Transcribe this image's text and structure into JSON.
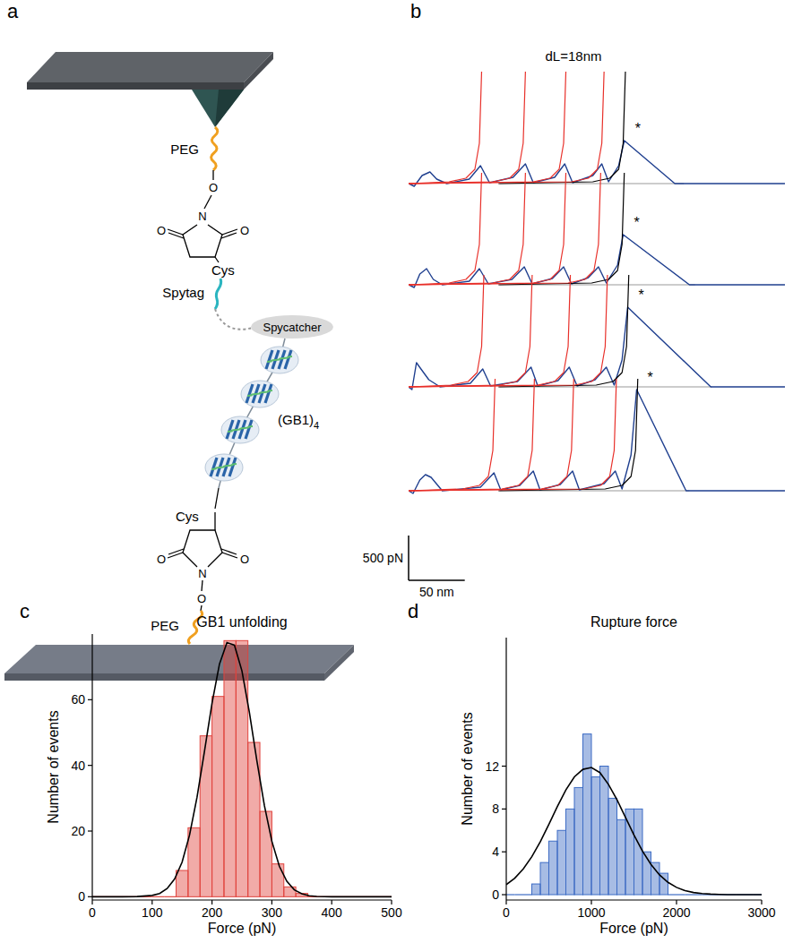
{
  "diagram": {
    "panel": "a",
    "top_peg": "PEG",
    "top_atoms": [
      "O",
      "N",
      "O",
      "O"
    ],
    "top_cys": "Cys",
    "spytag": "Spytag",
    "spycatcher": "Spycatcher",
    "gb1": {
      "text": "(GB1)",
      "subscript": "4"
    },
    "bottom_cys": "Cys",
    "bottom_atoms": [
      "O",
      "N",
      "O",
      "O"
    ],
    "bottom_peg": "PEG"
  },
  "chart_data": [
    {
      "panel": "b",
      "type": "line",
      "title": "dL=18nm",
      "xlim": [
        0,
        335
      ],
      "ylim": [
        -100,
        1300
      ],
      "tick_labels": false,
      "scale_bars": [
        {
          "value": 500,
          "label": "500 pN"
        },
        {
          "value": 50,
          "label": "50 nm"
        }
      ],
      "traces": [
        {
          "annotation": "*",
          "series": [
            {
              "color": "#1f3f8f",
              "x": [
                0,
                5,
                12,
                19,
                25,
                34,
                54,
                64,
                72,
                93,
                104,
                111,
                130,
                139,
                146,
                164,
                172,
                178,
                187,
                192,
                237,
                335
              ],
              "values": [
                0,
                -30,
                90,
                130,
                50,
                0,
                50,
                200,
                10,
                70,
                220,
                10,
                70,
                220,
                10,
                90,
                220,
                20,
                200,
                480,
                0,
                0
              ]
            },
            {
              "color": "#e8302a",
              "x": [
                0,
                36,
                51,
                59,
                63,
                65
              ],
              "values": [
                0,
                20,
                60,
                160,
                450,
                1250
              ]
            },
            {
              "color": "#e8302a",
              "x": [
                0,
                75,
                90,
                98,
                102,
                104
              ],
              "values": [
                0,
                20,
                60,
                160,
                450,
                1250
              ]
            },
            {
              "color": "#e8302a",
              "x": [
                0,
                111,
                126,
                134,
                138,
                140
              ],
              "values": [
                0,
                20,
                60,
                160,
                450,
                1250
              ]
            },
            {
              "color": "#e8302a",
              "x": [
                0,
                145,
                160,
                168,
                172,
                174
              ],
              "values": [
                0,
                20,
                60,
                160,
                450,
                1250
              ]
            },
            {
              "color": "#000000",
              "x": [
                80,
                164,
                179,
                187,
                191,
                193
              ],
              "values": [
                0,
                20,
                60,
                160,
                450,
                1250
              ]
            },
            {
              "color": "#9a9a9a",
              "x": [
                81,
                245
              ],
              "values": [
                0,
                0
              ]
            }
          ]
        },
        {
          "annotation": "*",
          "series": [
            {
              "color": "#1f3f8f",
              "x": [
                0,
                5,
                10,
                16,
                22,
                30,
                54,
                63,
                71,
                92,
                103,
                110,
                128,
                138,
                145,
                160,
                169,
                176,
                186,
                191,
                250,
                335
              ],
              "values": [
                0,
                -30,
                120,
                180,
                60,
                0,
                40,
                180,
                10,
                60,
                200,
                10,
                70,
                200,
                10,
                80,
                200,
                20,
                220,
                560,
                0,
                0
              ]
            },
            {
              "color": "#e8302a",
              "x": [
                0,
                36,
                51,
                59,
                63,
                65
              ],
              "values": [
                0,
                20,
                60,
                160,
                450,
                1250
              ]
            },
            {
              "color": "#e8302a",
              "x": [
                0,
                75,
                90,
                98,
                102,
                104
              ],
              "values": [
                0,
                20,
                60,
                160,
                450,
                1250
              ]
            },
            {
              "color": "#e8302a",
              "x": [
                0,
                111,
                126,
                134,
                138,
                140
              ],
              "values": [
                0,
                20,
                60,
                160,
                450,
                1250
              ]
            },
            {
              "color": "#e8302a",
              "x": [
                0,
                142,
                157,
                165,
                169,
                171
              ],
              "values": [
                0,
                20,
                60,
                160,
                450,
                1250
              ]
            },
            {
              "color": "#000000",
              "x": [
                80,
                163,
                178,
                186,
                190,
                192
              ],
              "values": [
                0,
                20,
                60,
                160,
                450,
                1250
              ]
            },
            {
              "color": "#9a9a9a",
              "x": [
                81,
                255
              ],
              "values": [
                0,
                0
              ]
            }
          ]
        },
        {
          "annotation": "*",
          "series": [
            {
              "color": "#1f3f8f",
              "x": [
                0,
                3,
                7,
                11,
                18,
                28,
                55,
                66,
                73,
                97,
                109,
                115,
                133,
                143,
                150,
                166,
                176,
                183,
                190,
                195,
                269,
                335
              ],
              "values": [
                0,
                -30,
                270,
                200,
                80,
                0,
                40,
                200,
                10,
                60,
                220,
                10,
                70,
                220,
                10,
                80,
                220,
                20,
                300,
                890,
                0,
                0
              ]
            },
            {
              "color": "#e8302a",
              "x": [
                0,
                38,
                53,
                61,
                65,
                67
              ],
              "values": [
                0,
                20,
                60,
                160,
                450,
                1250
              ]
            },
            {
              "color": "#e8302a",
              "x": [
                0,
                81,
                96,
                104,
                108,
                110
              ],
              "values": [
                0,
                20,
                60,
                160,
                450,
                1250
              ]
            },
            {
              "color": "#e8302a",
              "x": [
                0,
                115,
                130,
                138,
                142,
                144
              ],
              "values": [
                0,
                20,
                60,
                160,
                450,
                1250
              ]
            },
            {
              "color": "#e8302a",
              "x": [
                0,
                148,
                163,
                171,
                175,
                177
              ],
              "values": [
                0,
                20,
                60,
                160,
                450,
                1250
              ]
            },
            {
              "color": "#000000",
              "x": [
                80,
                167,
                182,
                190,
                194,
                196
              ],
              "values": [
                0,
                20,
                60,
                160,
                450,
                1250
              ]
            },
            {
              "color": "#9a9a9a",
              "x": [
                81,
                270
              ],
              "values": [
                0,
                0
              ]
            }
          ]
        },
        {
          "annotation": "*",
          "series": [
            {
              "color": "#1f3f8f",
              "x": [
                0,
                4,
                10,
                15,
                20,
                30,
                64,
                76,
                82,
                99,
                111,
                117,
                135,
                146,
                152,
                174,
                184,
                190,
                198,
                203,
                247,
                335
              ],
              "values": [
                0,
                -30,
                120,
                180,
                150,
                0,
                40,
                200,
                10,
                60,
                220,
                10,
                70,
                220,
                10,
                80,
                220,
                20,
                400,
                1130,
                0,
                0
              ]
            },
            {
              "color": "#e8302a",
              "x": [
                0,
                48,
                63,
                71,
                75,
                77
              ],
              "values": [
                0,
                20,
                60,
                160,
                450,
                1250
              ]
            },
            {
              "color": "#e8302a",
              "x": [
                0,
                83,
                98,
                106,
                110,
                112
              ],
              "values": [
                0,
                20,
                60,
                160,
                450,
                1250
              ]
            },
            {
              "color": "#e8302a",
              "x": [
                0,
                118,
                133,
                141,
                145,
                147
              ],
              "values": [
                0,
                20,
                60,
                160,
                450,
                1250
              ]
            },
            {
              "color": "#e8302a",
              "x": [
                0,
                156,
                171,
                179,
                183,
                185
              ],
              "values": [
                0,
                20,
                60,
                160,
                450,
                1250
              ]
            },
            {
              "color": "#000000",
              "x": [
                80,
                175,
                190,
                198,
                202,
                204
              ],
              "values": [
                0,
                20,
                60,
                160,
                450,
                1250
              ]
            },
            {
              "color": "#9a9a9a",
              "x": [
                81,
                250
              ],
              "values": [
                0,
                0
              ]
            }
          ]
        }
      ]
    },
    {
      "panel": "c",
      "type": "histogram",
      "title": "GB1 unfolding",
      "x_label": "Force (pN)",
      "y_label": "Number of events",
      "color": "#e0443e",
      "bins": [
        0,
        20,
        40,
        60,
        80,
        100,
        120,
        140,
        160,
        180,
        200,
        220,
        240,
        260,
        280,
        300,
        320,
        340,
        360,
        380,
        400,
        420,
        440,
        460,
        480,
        500
      ],
      "counts": [
        0,
        0,
        0,
        0,
        0,
        0,
        0,
        8,
        21,
        49,
        61,
        78,
        78,
        47,
        26,
        10,
        3,
        1,
        0,
        0,
        0,
        0,
        0,
        0,
        0
      ],
      "xlim": [
        0,
        500
      ],
      "ylim": [
        -1,
        80
      ],
      "xticks": [
        0,
        100,
        200,
        300,
        400,
        500
      ],
      "yticks": [
        0,
        20,
        40,
        60
      ],
      "fit": {
        "color": "#000000",
        "x": [
          0,
          25,
          50,
          75,
          100,
          112.5,
          125,
          137.5,
          150,
          162.5,
          175,
          187.5,
          200,
          212.5,
          225,
          237.5,
          250,
          262.5,
          275,
          287.5,
          300,
          312.5,
          325,
          337.5,
          350,
          362.5,
          375,
          400,
          450,
          500
        ],
        "values": [
          0,
          0,
          0,
          0.05,
          0.4,
          1.0,
          2.5,
          5.4,
          10.5,
          18.8,
          30.3,
          44.4,
          58.9,
          70.9,
          77.4,
          76.6,
          68.8,
          56.1,
          41.4,
          27.8,
          16.9,
          9.3,
          4.7,
          2.1,
          0.9,
          0.3,
          0.1,
          0,
          0,
          0
        ]
      }
    },
    {
      "panel": "d",
      "type": "histogram",
      "title": "Rupture force",
      "x_label": "Force (pN)",
      "y_label": "Number of events",
      "color": "#3c6bc4",
      "bins": [
        0,
        100,
        200,
        300,
        400,
        500,
        600,
        700,
        800,
        900,
        1000,
        1100,
        1200,
        1300,
        1400,
        1500,
        1600,
        1700,
        1800,
        1900,
        2000,
        2100,
        2200,
        2300,
        2400,
        2500,
        2600,
        2700,
        2800,
        2900,
        3000
      ],
      "counts": [
        0,
        0,
        0,
        1,
        3,
        5,
        6,
        8,
        10,
        15,
        11,
        12,
        9,
        7,
        8,
        8,
        4,
        3,
        2,
        0,
        0,
        0,
        0,
        0,
        0,
        0,
        0,
        0,
        0,
        0
      ],
      "xlim": [
        0,
        3000
      ],
      "ylim": [
        -0.5,
        24
      ],
      "xticks": [
        0,
        1000,
        2000,
        3000
      ],
      "yticks": [
        0,
        4,
        8,
        12
      ],
      "fit": {
        "color": "#000000",
        "x": [
          0,
          100,
          200,
          300,
          400,
          500,
          600,
          700,
          800,
          900,
          1000,
          1100,
          1200,
          1300,
          1400,
          1500,
          1600,
          1700,
          1800,
          1900,
          2000,
          2100,
          2200,
          2300,
          2400,
          2500,
          2600,
          2700,
          2800,
          2900,
          3000
        ],
        "values": [
          0.94,
          1.54,
          2.4,
          3.54,
          4.94,
          6.55,
          8.22,
          9.77,
          11.0,
          11.7,
          11.87,
          11.4,
          10.3,
          8.87,
          7.22,
          5.57,
          4.07,
          2.82,
          1.85,
          1.15,
          0.68,
          0.38,
          0.2,
          0.1,
          0.05,
          0.02,
          0,
          0,
          0,
          0,
          0
        ]
      }
    }
  ]
}
